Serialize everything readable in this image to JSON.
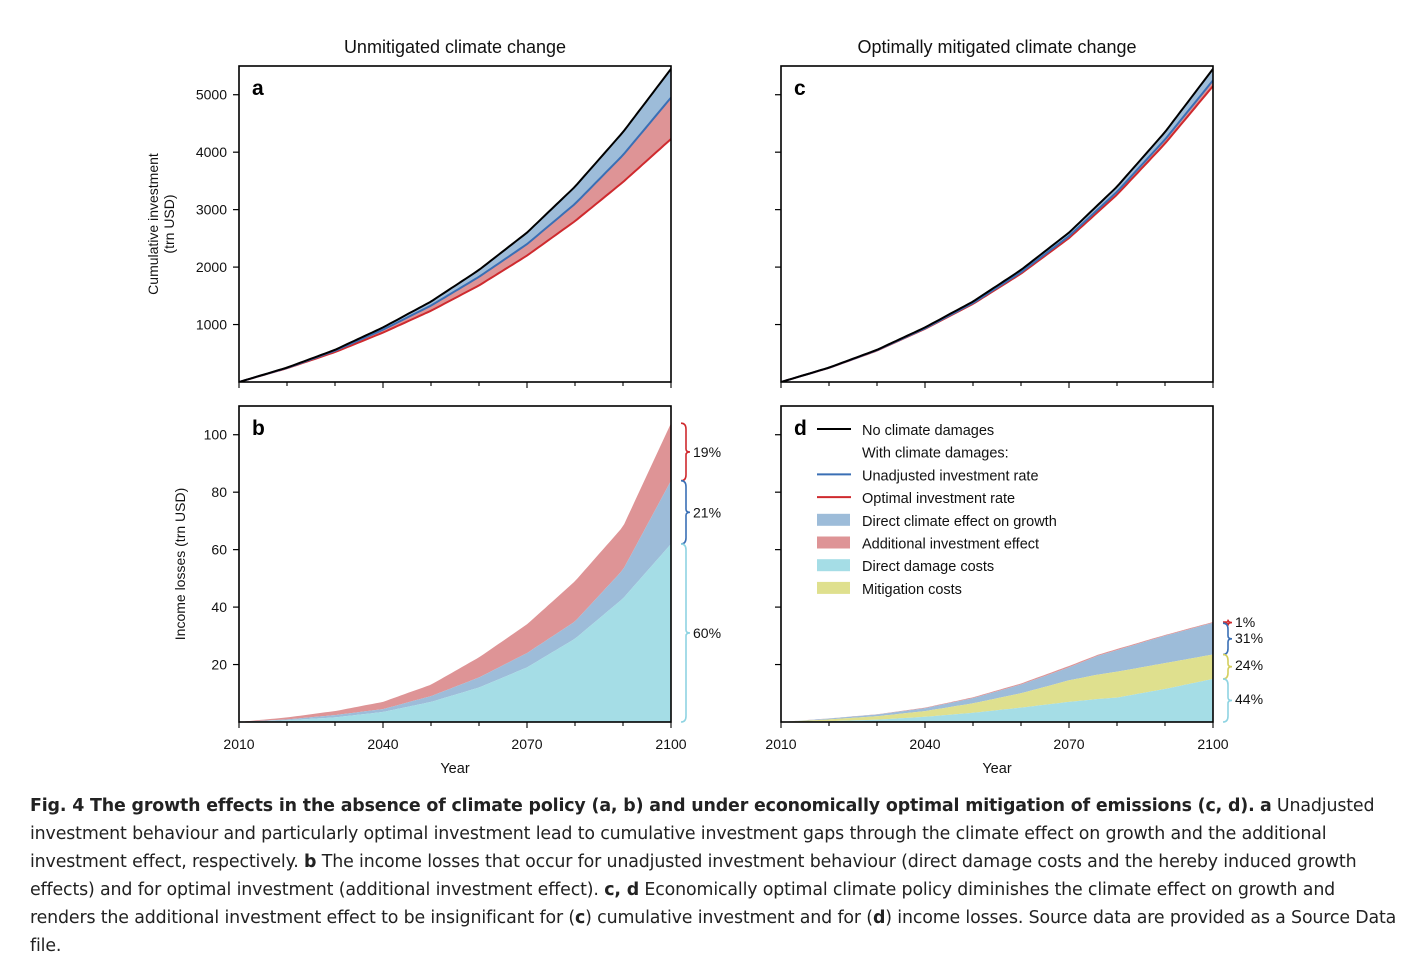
{
  "chart_data": [
    {
      "panel": "a",
      "type": "area",
      "title": "Unmitigated climate change",
      "xlabel": "",
      "ylabel": "Cumulative investment\n(trn USD)",
      "xlim": [
        2010,
        2100
      ],
      "ylim": [
        0,
        5500
      ],
      "yticks": [
        1000,
        2000,
        3000,
        4000,
        5000
      ],
      "x": [
        2010,
        2020,
        2030,
        2040,
        2050,
        2060,
        2070,
        2080,
        2090,
        2100
      ],
      "series": [
        {
          "name": "No climate damages",
          "values": [
            0,
            250,
            560,
            950,
            1400,
            1950,
            2600,
            3400,
            4350,
            5450
          ]
        },
        {
          "name": "Unadjusted investment rate",
          "values": [
            0,
            245,
            545,
            910,
            1330,
            1830,
            2400,
            3100,
            3950,
            4950
          ]
        },
        {
          "name": "Optimal investment rate",
          "values": [
            0,
            240,
            520,
            860,
            1240,
            1680,
            2200,
            2800,
            3480,
            4230
          ]
        }
      ]
    },
    {
      "panel": "b",
      "type": "area",
      "title": "",
      "xlabel": "Year",
      "ylabel": "Income losses (trn USD)",
      "xlim": [
        2010,
        2100
      ],
      "ylim": [
        0,
        110
      ],
      "yticks": [
        20,
        40,
        60,
        80,
        100
      ],
      "xticks": [
        2010,
        2040,
        2070,
        2100
      ],
      "x": [
        2010,
        2020,
        2030,
        2040,
        2050,
        2060,
        2070,
        2080,
        2090,
        2100
      ],
      "series": [
        {
          "name": "Direct damage costs",
          "values": [
            0,
            0.6,
            1.6,
            3.5,
            7,
            12,
            19,
            29,
            43,
            62
          ]
        },
        {
          "name": "Direct climate effect on growth",
          "values": [
            0,
            0.9,
            2.4,
            4.5,
            9,
            15.5,
            24,
            35,
            53,
            84
          ]
        },
        {
          "name": "Additional investment effect",
          "values": [
            0,
            1.6,
            3.8,
            7,
            13,
            22.5,
            34,
            49,
            68,
            104
          ]
        }
      ],
      "brackets": [
        {
          "label": "19%",
          "from": 84,
          "to": 104
        },
        {
          "label": "21%",
          "from": 62,
          "to": 84
        },
        {
          "label": "60%",
          "from": 0,
          "to": 62
        }
      ]
    },
    {
      "panel": "c",
      "type": "area",
      "title": "Optimally mitigated climate change",
      "xlabel": "",
      "ylabel": "",
      "xlim": [
        2010,
        2100
      ],
      "ylim": [
        0,
        5500
      ],
      "x": [
        2010,
        2020,
        2030,
        2040,
        2050,
        2060,
        2070,
        2080,
        2090,
        2100
      ],
      "series": [
        {
          "name": "No climate damages",
          "values": [
            0,
            250,
            560,
            950,
            1400,
            1950,
            2600,
            3400,
            4350,
            5450
          ]
        },
        {
          "name": "Unadjusted investment rate",
          "values": [
            0,
            248,
            553,
            935,
            1375,
            1910,
            2540,
            3310,
            4220,
            5250
          ]
        },
        {
          "name": "Optimal investment rate",
          "values": [
            0,
            246,
            548,
            925,
            1360,
            1885,
            2505,
            3260,
            4150,
            5150
          ]
        }
      ]
    },
    {
      "panel": "d",
      "type": "area",
      "title": "",
      "xlabel": "Year",
      "ylabel": "",
      "xlim": [
        2010,
        2100
      ],
      "ylim": [
        0,
        110
      ],
      "xticks": [
        2010,
        2040,
        2070,
        2100
      ],
      "x": [
        2010,
        2020,
        2030,
        2040,
        2050,
        2060,
        2070,
        2076,
        2080,
        2090,
        2100
      ],
      "series": [
        {
          "name": "Direct damage costs",
          "values": [
            0,
            0.3,
            0.8,
            1.8,
            3.2,
            5,
            7,
            8,
            8.5,
            11.5,
            15
          ]
        },
        {
          "name": "Mitigation costs",
          "values": [
            0,
            0.9,
            2,
            3.8,
            6.5,
            10,
            14.5,
            16.5,
            17.5,
            20.5,
            23.5
          ]
        },
        {
          "name": "Direct climate effect on growth",
          "values": [
            0,
            1.2,
            2.6,
            4.8,
            8.3,
            13,
            19,
            23,
            25,
            30,
            34.5
          ]
        },
        {
          "name": "Additional investment effect",
          "values": [
            0,
            1.25,
            2.7,
            5,
            8.6,
            13.4,
            19.5,
            23.4,
            25.4,
            30.3,
            34.8
          ]
        }
      ],
      "brackets": [
        {
          "label": "1%",
          "from": 34.4,
          "to": 34.8
        },
        {
          "label": "31%",
          "from": 23.5,
          "to": 34.4
        },
        {
          "label": "24%",
          "from": 15,
          "to": 23.5
        },
        {
          "label": "44%",
          "from": 0,
          "to": 15
        }
      ],
      "legend": {
        "placement": "top",
        "heading": "With climate damages:",
        "entries": [
          {
            "label": "No climate damages",
            "kind": "line",
            "color": "#000000"
          },
          {
            "label": "With climate damages:",
            "kind": "text"
          },
          {
            "label": "Unadjusted investment rate",
            "kind": "line",
            "color": "#3a6fb5"
          },
          {
            "label": "Optimal investment rate",
            "kind": "line",
            "color": "#cf2a2e"
          },
          {
            "label": "Direct climate effect on growth",
            "kind": "patch",
            "color": "#9dbcd9"
          },
          {
            "label": "Additional investment effect",
            "kind": "patch",
            "color": "#de9496"
          },
          {
            "label": "Direct damage costs",
            "kind": "patch",
            "color": "#a5dde6"
          },
          {
            "label": "Mitigation costs",
            "kind": "patch",
            "color": "#dfe08e"
          }
        ]
      }
    }
  ],
  "colors": {
    "no_damage_line": "#000000",
    "unadjusted_line": "#3a6fb5",
    "optimal_line": "#cf2a2e",
    "growth_fill": "#9dbcd9",
    "investment_fill": "#de9496",
    "damage_fill": "#a5dde6",
    "mitigation_fill": "#dfe08e"
  },
  "caption": {
    "bold_intro": "Fig. 4 The growth effects in the absence of climate policy (a, b) and under economically optimal mitigation of emissions (c, d).",
    "label_a": "a",
    "text_a": "Unadjusted investment behaviour and particularly optimal investment lead to cumulative investment gaps through the climate effect on growth and the additional investment effect, respectively.",
    "label_b": "b",
    "text_b": "The income losses that occur for unadjusted investment behaviour (direct damage costs and the hereby induced growth effects) and for optimal investment (additional investment effect).",
    "label_cd": "c, d",
    "text_cd_1": "Economically optimal climate policy diminishes the climate effect on growth and renders the additional investment effect to be insignificant for (",
    "label_c2": "c",
    "text_cd_2": ") cumulative investment and for (",
    "label_d2": "d",
    "text_cd_3": ") income losses. Source data are provided as a Source Data file."
  }
}
